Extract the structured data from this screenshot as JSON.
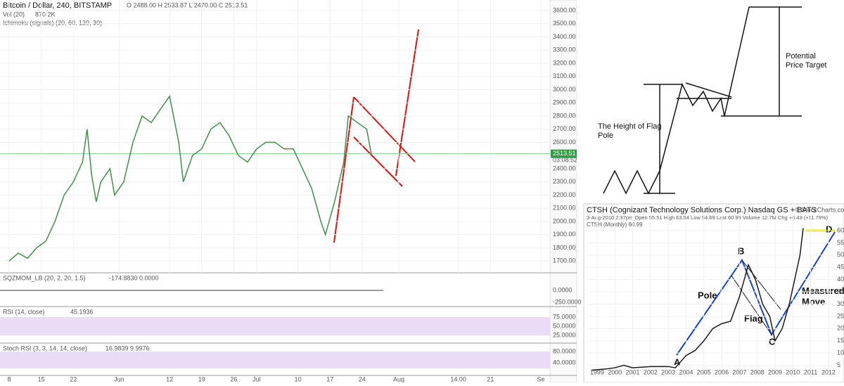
{
  "chart_data": [
    {
      "type": "line",
      "title": "Bitcoin / Dollar, 240, BITSTAMP",
      "color": "#3f8f4a",
      "x": [
        0,
        2,
        4,
        6,
        8,
        10,
        12,
        14,
        16,
        17,
        18,
        19,
        20,
        22,
        23,
        25,
        27,
        29,
        31,
        33,
        35,
        37,
        38,
        40,
        42,
        44,
        46,
        48,
        50,
        52,
        54,
        56,
        58,
        60,
        62,
        64,
        66,
        68,
        69,
        71,
        72,
        73,
        74,
        76,
        78,
        79
      ],
      "values": [
        1700,
        1760,
        1720,
        1800,
        1850,
        2000,
        2200,
        2300,
        2450,
        2700,
        2350,
        2150,
        2300,
        2400,
        2200,
        2300,
        2600,
        2800,
        2750,
        2850,
        2950,
        2600,
        2300,
        2500,
        2550,
        2700,
        2750,
        2650,
        2500,
        2450,
        2550,
        2600,
        2600,
        2550,
        2550,
        2400,
        2250,
        2000,
        1900,
        2150,
        2300,
        2450,
        2800,
        2750,
        2700,
        2513.51
      ],
      "last_price": 2513.51,
      "xlim": [
        -2,
        118
      ],
      "ylim": [
        1610,
        3680
      ],
      "xticks": [
        {
          "value": 0,
          "label": "8"
        },
        {
          "value": 7,
          "label": "15"
        },
        {
          "value": 14,
          "label": "22"
        },
        {
          "value": 24,
          "label": "Jun"
        },
        {
          "value": 35,
          "label": "12"
        },
        {
          "value": 42,
          "label": "19"
        },
        {
          "value": 49,
          "label": "26"
        },
        {
          "value": 54,
          "label": "Jul"
        },
        {
          "value": 63,
          "label": "10"
        },
        {
          "value": 70,
          "label": "17"
        },
        {
          "value": 77,
          "label": "24"
        },
        {
          "value": 85,
          "label": "Aug"
        },
        {
          "value": 98,
          "label": "14.00"
        },
        {
          "value": 105,
          "label": "21"
        },
        {
          "value": 116,
          "label": "Se"
        }
      ],
      "yticks": [
        {
          "value": 1700,
          "label": "1700.00"
        },
        {
          "value": 1800,
          "label": "1800.00"
        },
        {
          "value": 1900,
          "label": "1900.00"
        },
        {
          "value": 2000,
          "label": "2000.00"
        },
        {
          "value": 2100,
          "label": "2100.00"
        },
        {
          "value": 2200,
          "label": "2200.00"
        },
        {
          "value": 2300,
          "label": "2300.00"
        },
        {
          "value": 2400,
          "label": "2400.00"
        },
        {
          "value": 2600,
          "label": "2600.00"
        },
        {
          "value": 2700,
          "label": "2700.00"
        },
        {
          "value": 2800,
          "label": "2800.00"
        },
        {
          "value": 2900,
          "label": "2900.00"
        },
        {
          "value": 3000,
          "label": "3000.00"
        },
        {
          "value": 3100,
          "label": "3100.00"
        },
        {
          "value": 3200,
          "label": "3200.00"
        },
        {
          "value": 3300,
          "label": "3300.00"
        },
        {
          "value": 3400,
          "label": "3400.00"
        },
        {
          "value": 3500,
          "label": "3500.00"
        },
        {
          "value": 3600,
          "label": "3600.00"
        }
      ],
      "grid": true
    },
    {
      "type": "line",
      "title": "CTSH (Monthly) 60.99",
      "color": "#1a1a1a",
      "x": [
        1998.7,
        1999.5,
        2000,
        2000.5,
        2001,
        2002,
        2003,
        2003.4,
        2004,
        2004.5,
        2005,
        2005.5,
        2006,
        2006.5,
        2007,
        2007.5,
        2007.9,
        2008.3,
        2008.7,
        2009,
        2009.4,
        2009.8,
        2010.1,
        2010.4,
        2010.58
      ],
      "values": [
        3,
        3.5,
        4,
        5,
        4,
        4.5,
        4.5,
        4,
        9,
        11,
        15,
        20,
        22,
        23,
        33,
        46,
        40,
        30,
        25,
        15,
        20,
        30,
        40,
        50,
        60.99
      ],
      "xlim": [
        1998.45,
        2012.28
      ],
      "ylim": [
        0,
        66
      ],
      "xticks": [
        1999,
        2000,
        2001,
        2002,
        2003,
        2004,
        2005,
        2006,
        2007,
        2008,
        2009,
        2010,
        2011,
        2012
      ],
      "yticks": [
        5,
        10,
        15,
        20,
        25,
        30,
        35,
        40,
        45,
        50,
        55,
        60
      ],
      "grid": true
    }
  ],
  "tradingview": {
    "ohlc": "O 2488.00  H 2533.87  L 2470.00  C 2513.51",
    "vol": "Vol (20)",
    "vol_values": "870  2K",
    "ichimoku": "Ichimoku (signals) (20, 60, 120, 30)",
    "timer": "03:08:52",
    "sqz": {
      "label": "SQZMOM_LB (20, 2, 20, 1.5)",
      "value": "-174.8830  0.0000",
      "ticks": [
        "0.0000",
        "-250.0000"
      ]
    },
    "rsi": {
      "label": "RSI (14, close)",
      "value": "45.1936",
      "ticks": [
        "75.0000",
        "50.0000",
        "25.0000"
      ]
    },
    "stoch": {
      "label": "Stoch RSI (3, 3, 14, 14, close)",
      "value": "16.9839  9.9976",
      "ticks": [
        "80.0000",
        "40.0000"
      ]
    }
  },
  "diagram": {
    "target": "Potential\nPrice Target",
    "pole": "The Height of Flag\nPole"
  },
  "stockcharts": {
    "header": "CTSH (Cognizant Technology Solutions Corp.) Nasdaq GS + BATS",
    "brand": "© StockCharts.com",
    "quote": "3-Aug-2010 2:37pm  Open 55.51  High 63.94  Low 54.69  Last 60.99  Volume 12.7M  Chg +6.43 (+11.79%)",
    "labels": {
      "a": "A",
      "b": "B",
      "c": "C",
      "d": "D",
      "pole": "Pole",
      "flag": "Flag",
      "move": "Measured\nMove"
    }
  }
}
